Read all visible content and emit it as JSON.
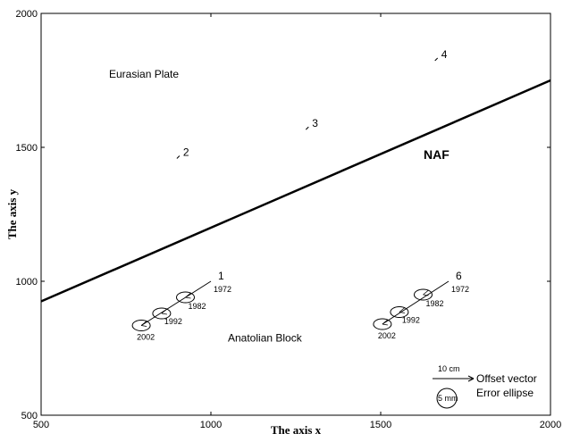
{
  "chart_data": {
    "type": "scatter",
    "title": "",
    "xlabel": "The axis x",
    "ylabel": "The axis y",
    "xlim": [
      500,
      2000
    ],
    "ylim": [
      500,
      2000
    ],
    "xticks": [
      "500",
      "1000",
      "1500",
      "2000"
    ],
    "yticks": [
      "500",
      "1000",
      "1500",
      "2000"
    ],
    "grid": false,
    "fault_line": {
      "label": "NAF",
      "x": [
        500,
        2000
      ],
      "y": [
        925,
        1750
      ]
    },
    "regions": [
      {
        "label": "Eurasian Plate",
        "x": 700,
        "y": 1760
      },
      {
        "label": "Anatolian Block",
        "x": 1050,
        "y": 775
      }
    ],
    "stations": [
      {
        "id": "1",
        "x": 910,
        "y": 1460,
        "x_end": 1000,
        "y_end": 1000,
        "epochs": [
          {
            "year": "1972",
            "x": 1000,
            "y": 1000
          },
          {
            "year": "1982",
            "x": 925,
            "y": 940
          },
          {
            "year": "1992",
            "x": 855,
            "y": 880
          },
          {
            "year": "2002",
            "x": 795,
            "y": 835
          }
        ]
      },
      {
        "id": "2",
        "x": 905,
        "y": 1465
      },
      {
        "id": "3",
        "x": 1285,
        "y": 1573
      },
      {
        "id": "4",
        "x": 1665,
        "y": 1830
      },
      {
        "id": "6",
        "x": 1700,
        "y": 1000,
        "epochs": [
          {
            "year": "1972",
            "x": 1700,
            "y": 1000
          },
          {
            "year": "1982",
            "x": 1625,
            "y": 950
          },
          {
            "year": "1992",
            "x": 1555,
            "y": 885
          },
          {
            "year": "2002",
            "x": 1505,
            "y": 840
          }
        ]
      }
    ],
    "legend": {
      "position": "bottom-right",
      "vector_scale": "10 cm",
      "vector_label": "Offset vector",
      "ellipse_scale": "5 mm",
      "ellipse_label": "Error ellipse"
    }
  }
}
